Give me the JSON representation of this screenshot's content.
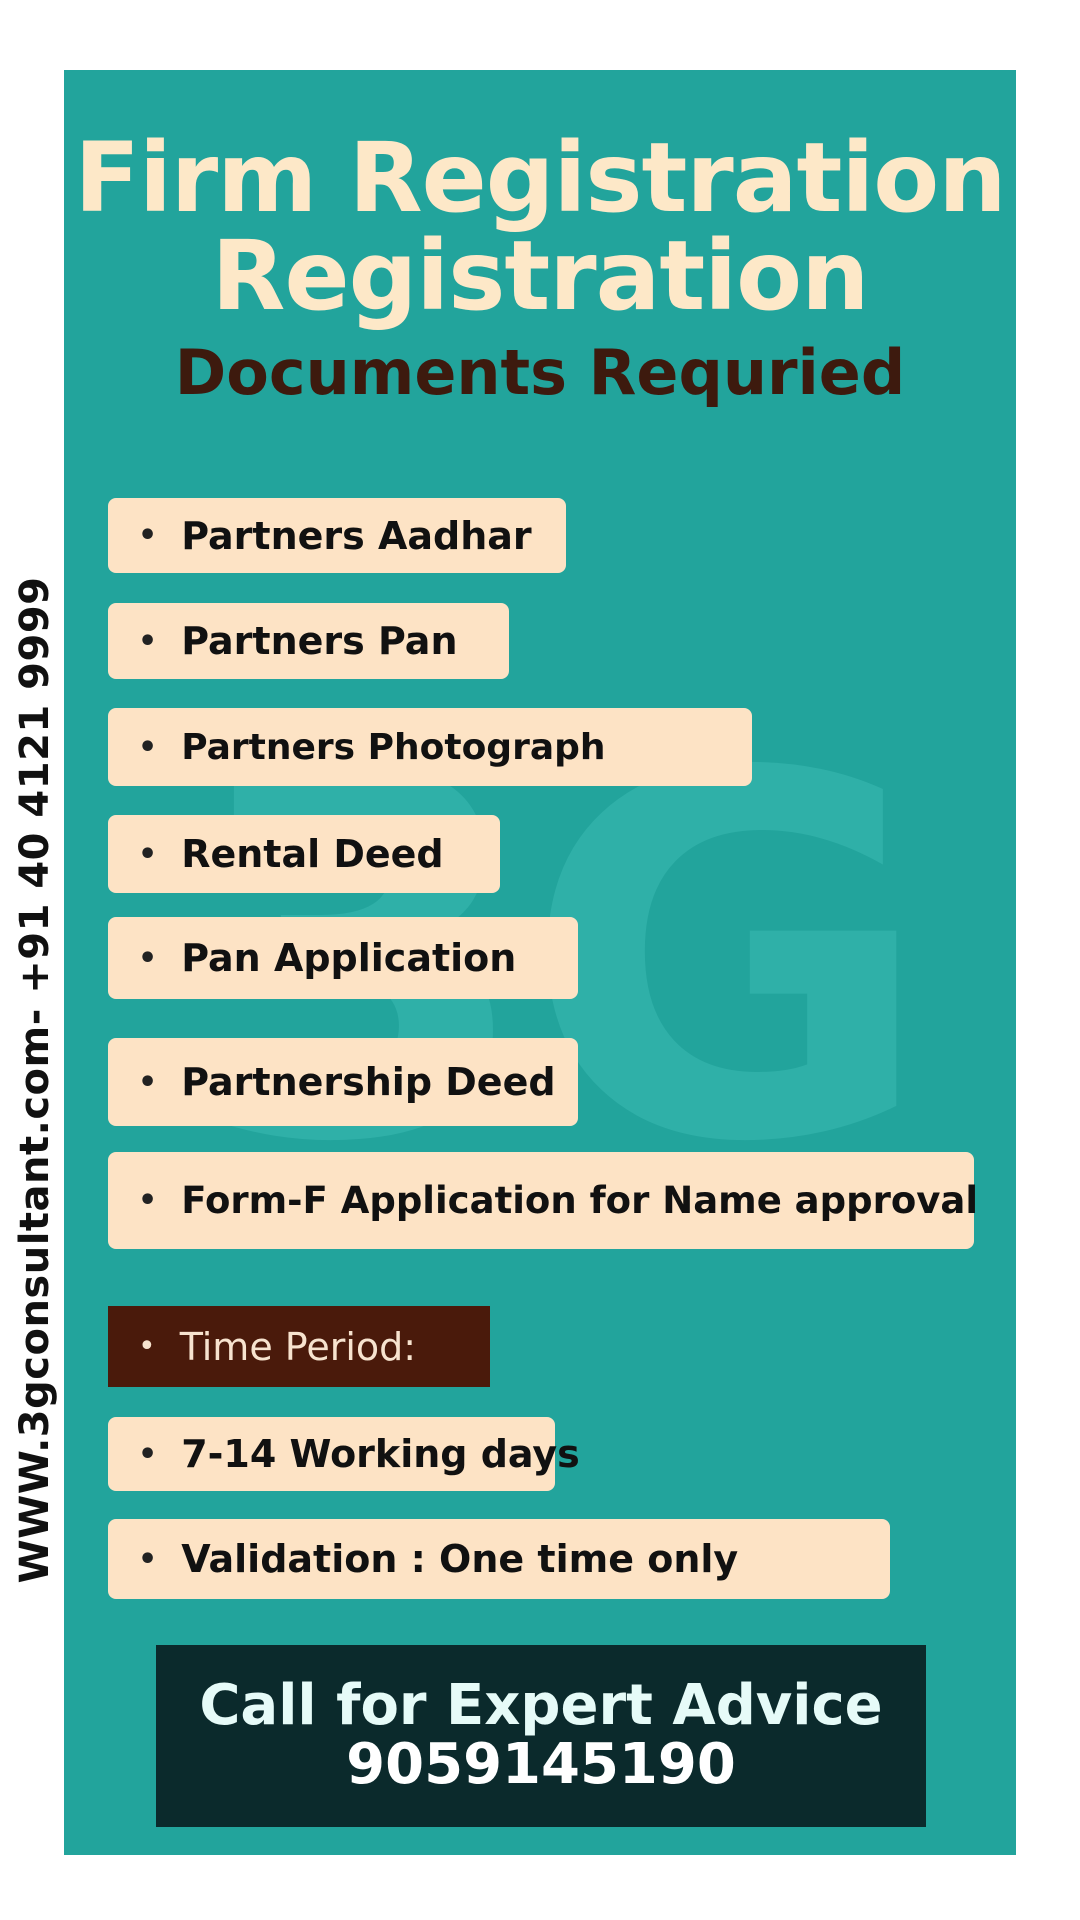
{
  "sidebar_text": "WWW.3gconsultant.com- +91 40 4121 9999",
  "watermark": "3G",
  "title": {
    "line1": "Firm Registration",
    "line2": "Registration"
  },
  "subtitle": "Documents Requried",
  "bullet_glyph": "•",
  "documents": [
    "Partners Aadhar",
    "Partners Pan",
    "Partners Photograph",
    "Rental Deed",
    "Pan Application",
    "Partnership Deed",
    "Form-F Application for Name approval"
  ],
  "time_period": {
    "label": "Time Period:",
    "duration": "7-14 Working days",
    "validation": "Validation : One time only"
  },
  "cta": {
    "line1": "Call for Expert Advice",
    "phone": "9059145190"
  },
  "colors": {
    "panel": "#22a49c",
    "pill": "#fde3c5",
    "title": "#fde8c8",
    "subtitle": "#3d1a0e",
    "time_label_bg": "#4a1a0b",
    "cta_bg": "#0b2a2c"
  }
}
